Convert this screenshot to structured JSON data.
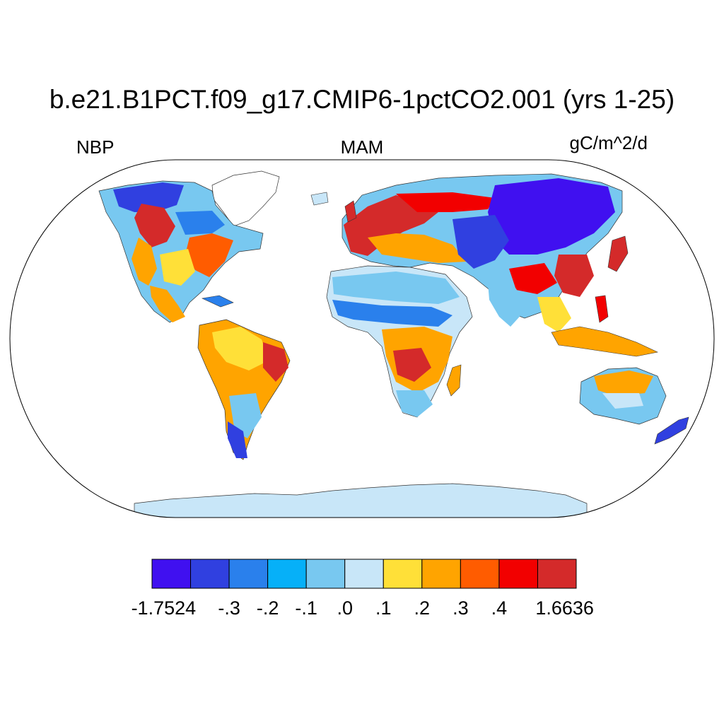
{
  "title": "b.e21.B1PCT.f09_g17.CMIP6-1pctCO2.001 (yrs 1-25)",
  "left_label": "NBP",
  "center_label": "MAM",
  "right_label": "gC/m^2/d",
  "colorbar": {
    "colors": [
      "#4010f0",
      "#3040e0",
      "#2a80ec",
      "#06b0f8",
      "#78c8f0",
      "#c8e6f8",
      "#ffe038",
      "#ffa400",
      "#ff5c00",
      "#f20000",
      "#d42a2a"
    ],
    "labels": [
      "-1.7524",
      "-.3",
      "-.2",
      "-.1",
      ".0",
      ".1",
      ".2",
      ".3",
      ".4",
      "1.6636"
    ]
  },
  "map": {
    "projection": "robinson",
    "ocean_color": "#ffffff",
    "ice_color": "#c8e6f8"
  }
}
